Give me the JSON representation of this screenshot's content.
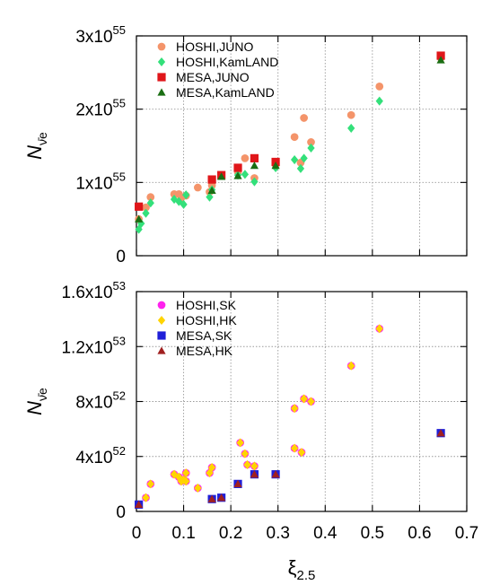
{
  "chart_data": [
    {
      "type": "scatter",
      "ylabel": "N",
      "ylabel_sub": "ν̄e",
      "xlim": [
        0,
        0.7
      ],
      "ylim": [
        0,
        3e+55
      ],
      "grid": true,
      "legend_placement": "top-left",
      "yticks": [
        {
          "value": 0,
          "mant": "0",
          "exp": ""
        },
        {
          "value": 1e+55,
          "mant": "1x10",
          "exp": "55"
        },
        {
          "value": 2e+55,
          "mant": "2x10",
          "exp": "55"
        },
        {
          "value": 3e+55,
          "mant": "3x10",
          "exp": "55"
        }
      ],
      "series": [
        {
          "name": "HOSHI,JUNO",
          "marker": "circle",
          "color": "#f4946a",
          "points": [
            [
              0.005,
              0.5
            ],
            [
              0.02,
              0.66
            ],
            [
              0.03,
              0.8
            ],
            [
              0.08,
              0.84
            ],
            [
              0.09,
              0.84
            ],
            [
              0.095,
              0.79
            ],
            [
              0.105,
              0.82
            ],
            [
              0.13,
              0.93
            ],
            [
              0.155,
              0.87
            ],
            [
              0.16,
              0.96
            ],
            [
              0.215,
              1.14
            ],
            [
              0.23,
              1.33
            ],
            [
              0.25,
              1.06
            ],
            [
              0.295,
              1.24
            ],
            [
              0.335,
              1.62
            ],
            [
              0.348,
              1.27
            ],
            [
              0.355,
              1.88
            ],
            [
              0.37,
              1.55
            ],
            [
              0.455,
              1.92
            ],
            [
              0.515,
              2.31
            ],
            [
              0.645,
              2.7
            ]
          ]
        },
        {
          "name": "HOSHI,KamLAND",
          "marker": "diamond",
          "color": "#33e07a",
          "points": [
            [
              0.005,
              0.36
            ],
            [
              0.01,
              0.44
            ],
            [
              0.02,
              0.58
            ],
            [
              0.03,
              0.72
            ],
            [
              0.08,
              0.77
            ],
            [
              0.09,
              0.74
            ],
            [
              0.1,
              0.7
            ],
            [
              0.105,
              0.83
            ],
            [
              0.155,
              0.8
            ],
            [
              0.16,
              0.9
            ],
            [
              0.215,
              1.1
            ],
            [
              0.23,
              1.11
            ],
            [
              0.25,
              1.01
            ],
            [
              0.295,
              1.2
            ],
            [
              0.335,
              1.31
            ],
            [
              0.348,
              1.19
            ],
            [
              0.355,
              1.33
            ],
            [
              0.37,
              1.47
            ],
            [
              0.455,
              1.74
            ],
            [
              0.515,
              2.11
            ],
            [
              0.645,
              2.69
            ]
          ]
        },
        {
          "name": "MESA,JUNO",
          "marker": "square",
          "color": "#e0161a",
          "points": [
            [
              0.005,
              0.67
            ],
            [
              0.16,
              1.04
            ],
            [
              0.18,
              1.1
            ],
            [
              0.215,
              1.2
            ],
            [
              0.25,
              1.33
            ],
            [
              0.295,
              1.28
            ],
            [
              0.645,
              2.73
            ]
          ]
        },
        {
          "name": "MESA,KamLAND",
          "marker": "triangle",
          "color": "#1a6e13",
          "points": [
            [
              0.005,
              0.5
            ],
            [
              0.16,
              0.89
            ],
            [
              0.18,
              1.08
            ],
            [
              0.215,
              1.09
            ],
            [
              0.25,
              1.23
            ],
            [
              0.295,
              1.23
            ],
            [
              0.645,
              2.67
            ]
          ]
        }
      ]
    },
    {
      "type": "scatter",
      "xlabel": "ξ",
      "xlabel_sub": "2.5",
      "ylabel": "N",
      "ylabel_sub": "ν̄e",
      "xlim": [
        0,
        0.7
      ],
      "ylim": [
        0,
        1.6e+53
      ],
      "grid": true,
      "legend_placement": "top-left",
      "xticks": [
        "0",
        "0.1",
        "0.2",
        "0.3",
        "0.4",
        "0.5",
        "0.6",
        "0.7"
      ],
      "yticks": [
        {
          "value": 0,
          "mant": "0",
          "exp": ""
        },
        {
          "value": 4e+52,
          "mant": "4x10",
          "exp": "52"
        },
        {
          "value": 8e+52,
          "mant": "8x10",
          "exp": "52"
        },
        {
          "value": 1.2e+53,
          "mant": "1.2x10",
          "exp": "53"
        },
        {
          "value": 1.6e+53,
          "mant": "1.6x10",
          "exp": "53"
        }
      ],
      "series": [
        {
          "name": "HOSHI,SK",
          "marker": "circle",
          "color": "#ff22ee",
          "points": [
            [
              0.005,
              0.5
            ],
            [
              0.02,
              1.0
            ],
            [
              0.03,
              2.0
            ],
            [
              0.08,
              2.7
            ],
            [
              0.09,
              2.5
            ],
            [
              0.095,
              2.2
            ],
            [
              0.1,
              2.3
            ],
            [
              0.105,
              2.2
            ],
            [
              0.105,
              2.8
            ],
            [
              0.13,
              1.7
            ],
            [
              0.155,
              2.8
            ],
            [
              0.16,
              3.2
            ],
            [
              0.22,
              5.0
            ],
            [
              0.23,
              4.2
            ],
            [
              0.235,
              3.4
            ],
            [
              0.25,
              3.3
            ],
            [
              0.335,
              4.6
            ],
            [
              0.335,
              7.5
            ],
            [
              0.35,
              4.3
            ],
            [
              0.355,
              8.2
            ],
            [
              0.37,
              8.0
            ],
            [
              0.455,
              10.6
            ],
            [
              0.515,
              13.3
            ]
          ]
        },
        {
          "name": "HOSHI,HK",
          "marker": "diamond",
          "color": "#ffd400",
          "points": [
            [
              0.005,
              0.5
            ],
            [
              0.02,
              1.0
            ],
            [
              0.03,
              2.0
            ],
            [
              0.08,
              2.7
            ],
            [
              0.09,
              2.5
            ],
            [
              0.095,
              2.2
            ],
            [
              0.1,
              2.3
            ],
            [
              0.105,
              2.2
            ],
            [
              0.105,
              2.8
            ],
            [
              0.13,
              1.7
            ],
            [
              0.155,
              2.8
            ],
            [
              0.16,
              3.2
            ],
            [
              0.22,
              5.0
            ],
            [
              0.23,
              4.2
            ],
            [
              0.235,
              3.4
            ],
            [
              0.25,
              3.3
            ],
            [
              0.335,
              4.6
            ],
            [
              0.335,
              7.5
            ],
            [
              0.35,
              4.3
            ],
            [
              0.355,
              8.2
            ],
            [
              0.37,
              8.0
            ],
            [
              0.455,
              10.6
            ],
            [
              0.515,
              13.3
            ]
          ]
        },
        {
          "name": "MESA,SK",
          "marker": "square",
          "color": "#1f1fd8",
          "points": [
            [
              0.005,
              0.5
            ],
            [
              0.16,
              0.9
            ],
            [
              0.18,
              1.0
            ],
            [
              0.215,
              2.0
            ],
            [
              0.25,
              2.7
            ],
            [
              0.295,
              2.7
            ],
            [
              0.645,
              5.7
            ]
          ]
        },
        {
          "name": "MESA,HK",
          "marker": "triangle",
          "color": "#a02020",
          "points": [
            [
              0.005,
              0.5
            ],
            [
              0.16,
              0.9
            ],
            [
              0.18,
              1.0
            ],
            [
              0.215,
              2.0
            ],
            [
              0.25,
              2.7
            ],
            [
              0.295,
              2.7
            ],
            [
              0.645,
              5.7
            ]
          ]
        }
      ]
    }
  ]
}
